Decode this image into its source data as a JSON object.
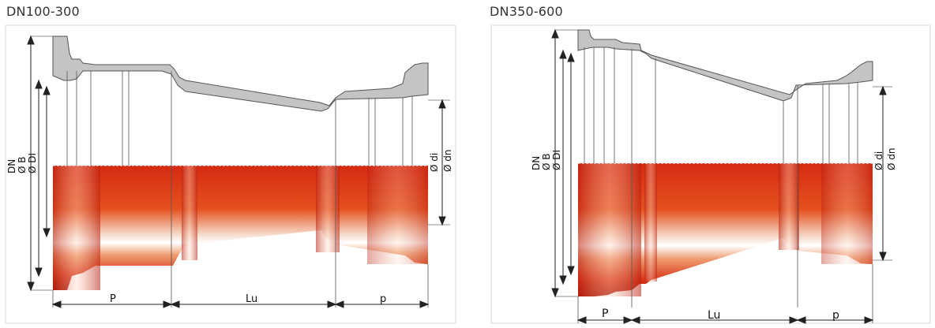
{
  "diagrams": [
    {
      "title": "DN100-300",
      "left_labels": [
        "DN",
        "Ø B",
        "Ø DI"
      ],
      "right_labels": [
        "Ø di",
        "Ø dn"
      ],
      "bottom_labels": [
        "P",
        "Lu",
        "p"
      ]
    },
    {
      "title": "DN350-600",
      "left_labels": [
        "DN",
        "Ø B",
        "Ø DI"
      ],
      "right_labels": [
        "Ø di",
        "Ø dn"
      ],
      "bottom_labels": [
        "P",
        "Lu",
        "p"
      ]
    }
  ],
  "colors": {
    "section_grey": "#c4c4c4",
    "body_red": "#d8321a",
    "highlight": "#ffffff"
  }
}
